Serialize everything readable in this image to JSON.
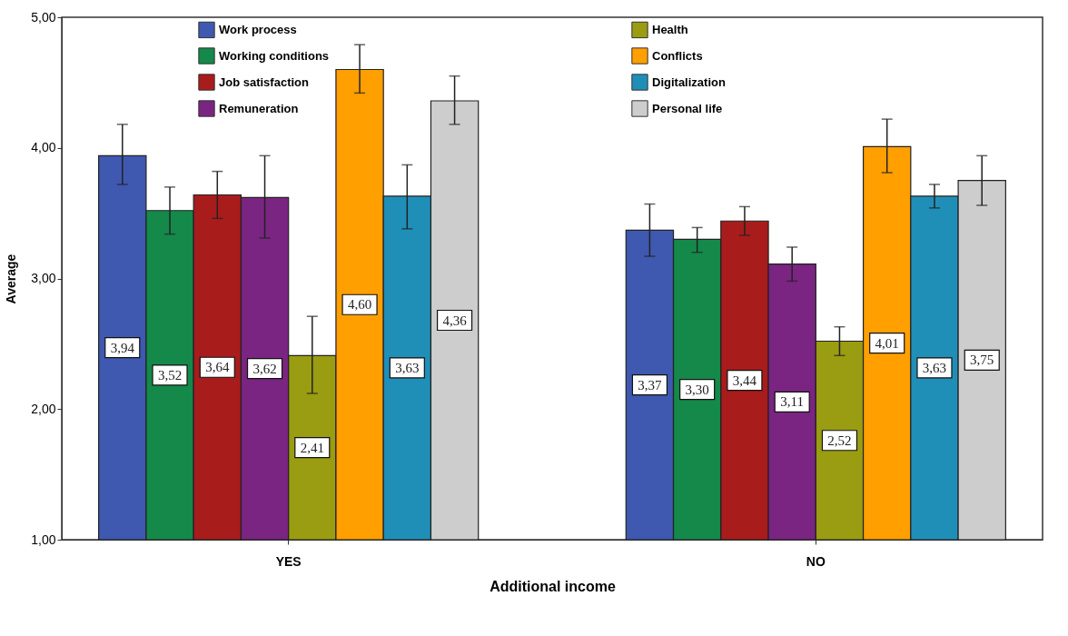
{
  "chart_data": {
    "type": "bar",
    "xlabel": "Additional income",
    "ylabel": "Average",
    "categories": [
      "YES",
      "NO"
    ],
    "series": [
      {
        "name": "Work process",
        "color": "#3f58b0",
        "values": [
          3.94,
          3.37
        ],
        "errors": [
          [
            3.72,
            4.18
          ],
          [
            3.17,
            3.57
          ]
        ],
        "value_labels": [
          "3,94",
          "3,37"
        ]
      },
      {
        "name": "Working conditions",
        "color": "#14894a",
        "values": [
          3.52,
          3.3
        ],
        "errors": [
          [
            3.34,
            3.7
          ],
          [
            3.2,
            3.39
          ]
        ],
        "value_labels": [
          "3,52",
          "3,30"
        ]
      },
      {
        "name": "Job satisfaction",
        "color": "#a81c1c",
        "values": [
          3.64,
          3.44
        ],
        "errors": [
          [
            3.46,
            3.82
          ],
          [
            3.33,
            3.55
          ]
        ],
        "value_labels": [
          "3,64",
          "3,44"
        ]
      },
      {
        "name": "Remuneration",
        "color": "#7a2581",
        "values": [
          3.62,
          3.11
        ],
        "errors": [
          [
            3.31,
            3.94
          ],
          [
            2.98,
            3.24
          ]
        ],
        "value_labels": [
          "3,62",
          "3,11"
        ]
      },
      {
        "name": "Health",
        "color": "#9a9c12",
        "values": [
          2.41,
          2.52
        ],
        "errors": [
          [
            2.12,
            2.71
          ],
          [
            2.41,
            2.63
          ]
        ],
        "value_labels": [
          "2,41",
          "2,52"
        ]
      },
      {
        "name": "Conflicts",
        "color": "#ff9f00",
        "values": [
          4.6,
          4.01
        ],
        "errors": [
          [
            4.42,
            4.79
          ],
          [
            3.81,
            4.22
          ]
        ],
        "value_labels": [
          "4,60",
          "4,01"
        ]
      },
      {
        "name": "Digitalization",
        "color": "#208fb8",
        "values": [
          3.63,
          3.63
        ],
        "errors": [
          [
            3.38,
            3.87
          ],
          [
            3.54,
            3.72
          ]
        ],
        "value_labels": [
          "3,63",
          "3,63"
        ]
      },
      {
        "name": "Personal life",
        "color": "#cdcdcd",
        "values": [
          4.36,
          3.75
        ],
        "errors": [
          [
            4.18,
            4.55
          ],
          [
            3.56,
            3.94
          ]
        ],
        "value_labels": [
          "4,36",
          "3,75"
        ]
      }
    ],
    "ylim": [
      1,
      5
    ],
    "yticks": [
      {
        "value": 1,
        "label": "1,00"
      },
      {
        "value": 2,
        "label": "2,00"
      },
      {
        "value": 3,
        "label": "3,00"
      },
      {
        "value": 4,
        "label": "4,00"
      },
      {
        "value": 5,
        "label": "5,00"
      }
    ],
    "grid": false,
    "legend": "top"
  }
}
